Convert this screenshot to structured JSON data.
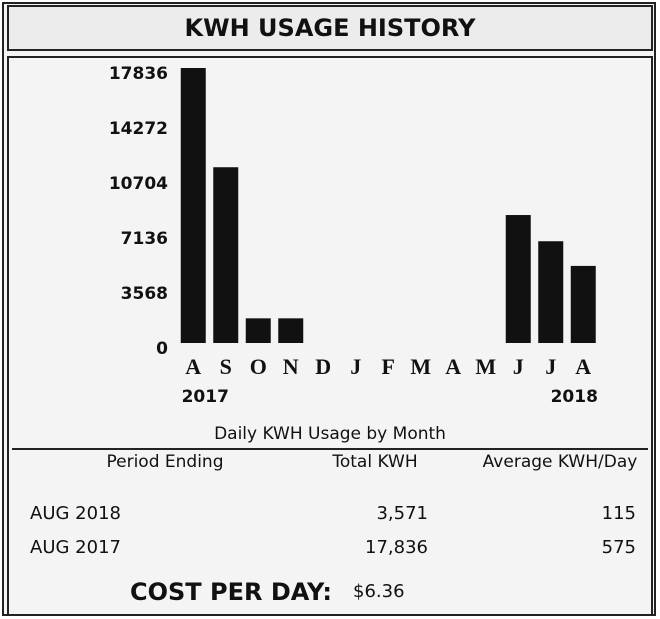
{
  "chart_data": {
    "type": "bar",
    "title": "KWH USAGE HISTORY",
    "categories": [
      "A",
      "S",
      "O",
      "N",
      "D",
      "J",
      "F",
      "M",
      "A",
      "M",
      "J",
      "J",
      "A"
    ],
    "values": [
      17836,
      11400,
      1600,
      1600,
      null,
      null,
      null,
      null,
      null,
      null,
      8300,
      6600,
      5000
    ],
    "color": "#111111",
    "ylim": [
      0,
      17836
    ],
    "yticks": [
      0,
      3568,
      7136,
      10704,
      14272,
      17836
    ],
    "annotations": [
      "2017",
      "2018"
    ],
    "caption": "Daily KWH Usage by Month"
  },
  "table": {
    "header": [
      "Period Ending",
      "Total KWH",
      "Average KWH/Day"
    ],
    "rows": [
      [
        "AUG 2018",
        "3,571",
        "115"
      ],
      [
        "AUG 2017",
        "17,836",
        "575"
      ]
    ]
  },
  "cost": {
    "label": "COST PER DAY:",
    "value": "$6.36"
  }
}
